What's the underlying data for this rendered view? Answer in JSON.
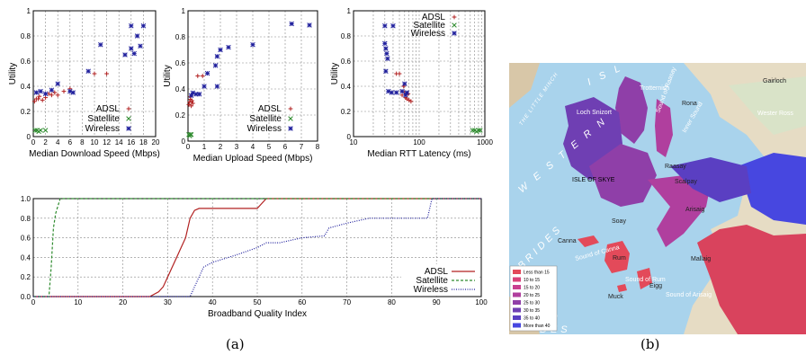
{
  "chart_data": [
    {
      "type": "scatter",
      "xlabel": "Median Download Speed (Mbps)",
      "ylabel": "Utility",
      "xlim": [
        0,
        20
      ],
      "ylim": [
        0,
        1
      ],
      "xticks": [
        "0",
        "2",
        "4",
        "6",
        "8",
        "10",
        "12",
        "14",
        "16",
        "18",
        "20"
      ],
      "yticks": [
        "0",
        "0.2",
        "0.4",
        "0.6",
        "0.8",
        "1"
      ],
      "legend_position": "bottom-right",
      "series": [
        {
          "name": "ADSL",
          "marker": "+",
          "color": "#b22222",
          "points": [
            [
              0.2,
              0.28
            ],
            [
              0.5,
              0.3
            ],
            [
              1.0,
              0.32
            ],
            [
              1.5,
              0.29
            ],
            [
              2.0,
              0.31
            ],
            [
              3.0,
              0.33
            ],
            [
              3.5,
              0.35
            ],
            [
              4.0,
              0.33
            ],
            [
              5.0,
              0.36
            ],
            [
              6.0,
              0.38
            ],
            [
              10.0,
              0.5
            ],
            [
              12.0,
              0.5
            ],
            [
              0.8,
              0.3
            ],
            [
              2.5,
              0.34
            ]
          ]
        },
        {
          "name": "Satellite",
          "marker": "x",
          "color": "#2e8b2e",
          "points": [
            [
              0.3,
              0.05
            ],
            [
              0.6,
              0.05
            ],
            [
              0.9,
              0.04
            ],
            [
              1.2,
              0.05
            ],
            [
              2.0,
              0.05
            ]
          ]
        },
        {
          "name": "Wireless",
          "marker": "*",
          "color": "#1f1f9c",
          "points": [
            [
              0.5,
              0.35
            ],
            [
              1.2,
              0.36
            ],
            [
              2.0,
              0.34
            ],
            [
              3.0,
              0.37
            ],
            [
              4.0,
              0.42
            ],
            [
              6.0,
              0.36
            ],
            [
              6.5,
              0.35
            ],
            [
              9.0,
              0.52
            ],
            [
              11.0,
              0.73
            ],
            [
              15.0,
              0.65
            ],
            [
              16.0,
              0.88
            ],
            [
              16.0,
              0.7
            ],
            [
              16.5,
              0.66
            ],
            [
              17.0,
              0.8
            ],
            [
              17.5,
              0.72
            ],
            [
              18.0,
              0.88
            ]
          ]
        }
      ]
    },
    {
      "type": "scatter",
      "xlabel": "Median Upload Speed (Mbps)",
      "ylabel": "Utility",
      "xlim": [
        0,
        8
      ],
      "ylim": [
        0,
        1
      ],
      "xticks": [
        "0",
        "1",
        "2",
        "3",
        "4",
        "5",
        "6",
        "7",
        "8"
      ],
      "yticks": [
        "0",
        "0.2",
        "0.4",
        "0.6",
        "0.8",
        "1"
      ],
      "legend_position": "bottom-right",
      "series": [
        {
          "name": "ADSL",
          "marker": "+",
          "color": "#b22222",
          "points": [
            [
              0.05,
              0.28
            ],
            [
              0.1,
              0.3
            ],
            [
              0.15,
              0.32
            ],
            [
              0.2,
              0.27
            ],
            [
              0.25,
              0.31
            ],
            [
              0.3,
              0.29
            ],
            [
              0.15,
              0.34
            ],
            [
              0.6,
              0.5
            ],
            [
              0.9,
              0.5
            ]
          ]
        },
        {
          "name": "Satellite",
          "marker": "x",
          "color": "#2e8b2e",
          "points": [
            [
              0.05,
              0.05
            ],
            [
              0.1,
              0.04
            ],
            [
              0.15,
              0.05
            ],
            [
              0.2,
              0.05
            ]
          ]
        },
        {
          "name": "Wireless",
          "marker": "*",
          "color": "#1f1f9c",
          "points": [
            [
              0.2,
              0.35
            ],
            [
              0.3,
              0.37
            ],
            [
              0.5,
              0.36
            ],
            [
              0.7,
              0.36
            ],
            [
              1.0,
              0.42
            ],
            [
              1.2,
              0.52
            ],
            [
              1.7,
              0.58
            ],
            [
              1.8,
              0.65
            ],
            [
              2.0,
              0.7
            ],
            [
              2.5,
              0.72
            ],
            [
              4.0,
              0.74
            ],
            [
              6.4,
              0.9
            ],
            [
              7.5,
              0.89
            ],
            [
              1.8,
              0.42
            ]
          ]
        }
      ]
    },
    {
      "type": "scatter",
      "xlabel": "Median RTT Latency (ms)",
      "ylabel": "Utility",
      "xscale": "log",
      "xlim": [
        10,
        1000
      ],
      "ylim": [
        0,
        1
      ],
      "xticks": [
        "10",
        "100",
        "1000"
      ],
      "yticks": [
        "0",
        "0.2",
        "0.4",
        "0.6",
        "0.8",
        "1"
      ],
      "legend_position": "top-right",
      "series": [
        {
          "name": "ADSL",
          "marker": "+",
          "color": "#b22222",
          "points": [
            [
              45,
              0.5
            ],
            [
              50,
              0.5
            ],
            [
              55,
              0.33
            ],
            [
              60,
              0.35
            ],
            [
              62,
              0.31
            ],
            [
              65,
              0.3
            ],
            [
              70,
              0.29
            ],
            [
              75,
              0.28
            ],
            [
              68,
              0.34
            ],
            [
              58,
              0.4
            ]
          ]
        },
        {
          "name": "Satellite",
          "marker": "x",
          "color": "#2e8b2e",
          "points": [
            [
              650,
              0.05
            ],
            [
              700,
              0.05
            ],
            [
              750,
              0.04
            ],
            [
              800,
              0.05
            ],
            [
              850,
              0.05
            ]
          ]
        },
        {
          "name": "Wireless",
          "marker": "*",
          "color": "#1f1f9c",
          "points": [
            [
              30,
              0.88
            ],
            [
              40,
              0.88
            ],
            [
              30,
              0.74
            ],
            [
              31,
              0.7
            ],
            [
              32,
              0.66
            ],
            [
              33,
              0.62
            ],
            [
              31,
              0.52
            ],
            [
              34,
              0.36
            ],
            [
              38,
              0.35
            ],
            [
              45,
              0.35
            ],
            [
              55,
              0.36
            ],
            [
              60,
              0.42
            ],
            [
              65,
              0.35
            ],
            [
              62,
              0.33
            ]
          ]
        }
      ]
    },
    {
      "type": "line",
      "subtype": "cdf",
      "xlabel": "Broadband Quality Index",
      "xlim": [
        0,
        100
      ],
      "ylim": [
        0,
        1
      ],
      "xticks": [
        "0",
        "10",
        "20",
        "30",
        "40",
        "50",
        "60",
        "70",
        "80",
        "90",
        "100"
      ],
      "yticks": [
        "0.0",
        "0.2",
        "0.4",
        "0.6",
        "0.8",
        "1.0"
      ],
      "legend_position": "bottom-right",
      "series": [
        {
          "name": "ADSL",
          "style": "solid",
          "color": "#b22222",
          "x": [
            0,
            26,
            28,
            29,
            30,
            31,
            32,
            33,
            34,
            35,
            36,
            37,
            45,
            50,
            51,
            52,
            100
          ],
          "y": [
            0,
            0,
            0.05,
            0.1,
            0.2,
            0.3,
            0.4,
            0.5,
            0.6,
            0.8,
            0.88,
            0.9,
            0.9,
            0.9,
            0.95,
            1.0,
            1.0
          ]
        },
        {
          "name": "Satellite",
          "style": "dashed",
          "color": "#2e8b2e",
          "x": [
            0,
            3.5,
            4,
            4.5,
            5,
            6,
            100
          ],
          "y": [
            0,
            0,
            0.3,
            0.7,
            0.85,
            1.0,
            1.0
          ]
        },
        {
          "name": "Wireless",
          "style": "dotted",
          "color": "#1f1f9c",
          "x": [
            0,
            35,
            36,
            37,
            38,
            40,
            45,
            50,
            52,
            55,
            60,
            65,
            66,
            70,
            75,
            80,
            88,
            89,
            100
          ],
          "y": [
            0,
            0,
            0.1,
            0.2,
            0.3,
            0.35,
            0.42,
            0.5,
            0.55,
            0.55,
            0.6,
            0.62,
            0.7,
            0.75,
            0.8,
            0.8,
            0.8,
            1.0,
            1.0
          ]
        }
      ]
    }
  ],
  "captions": {
    "a": "(a)",
    "b": "(b)"
  },
  "map": {
    "labels": {
      "western": "W E S T E R N",
      "isles": "I S L",
      "little_minch": "THE LITTLE MINCH",
      "trotternish": "Trotternish",
      "loch_snizort": "Loch Snizort",
      "rona": "Rona",
      "sound_raasay": "Sound of Raasay",
      "inner_sound": "Inner Sound",
      "raasay": "Raasay",
      "scalpay": "Scalpay",
      "skye": "ISLE OF SKYE",
      "soay": "Soay",
      "canna": "Canna",
      "rum": "Rum",
      "eigg": "Eigg",
      "muck": "Muck",
      "sound_canna": "Sound of Canna",
      "sound_rum": "Sound of Rum",
      "sound_arisaig": "Sound of Arisaig",
      "mallaig": "Mallaig",
      "arisaig": "Arisaig",
      "wester_ross": "Wester Ross",
      "gairloch": "Gairloch",
      "brides": "BRIDES",
      "hebrides_partial": "DES",
      "r_partial": "R"
    },
    "legend": [
      {
        "label": "Less than 15",
        "color": "#e34a5a"
      },
      {
        "label": "10 to 15",
        "color": "#d9437a"
      },
      {
        "label": "15 to 20",
        "color": "#c93f8f"
      },
      {
        "label": "20 to 25",
        "color": "#b03f9e"
      },
      {
        "label": "25 to 30",
        "color": "#8f3fa8"
      },
      {
        "label": "30 to 35",
        "color": "#6f3fb3"
      },
      {
        "label": "35 to 40",
        "color": "#5a3fc2"
      },
      {
        "label": "More than 40",
        "color": "#4747e0"
      }
    ]
  }
}
